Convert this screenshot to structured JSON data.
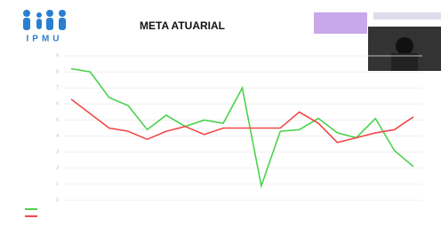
{
  "logo": {
    "text": "IPMU"
  },
  "chart_data": {
    "type": "line",
    "title": "META ATUARIAL",
    "categories": [
      null,
      null,
      null,
      null,
      null,
      null,
      null,
      null,
      null,
      null,
      null,
      null,
      null,
      null,
      null,
      null,
      null,
      null,
      null
    ],
    "series": [
      {
        "color": "#4cd24c",
        "values": [
          8.2,
          8.0,
          6.4,
          5.9,
          4.4,
          5.3,
          4.6,
          5.0,
          4.8,
          7.0,
          0.9,
          4.3,
          4.4,
          5.1,
          4.2,
          3.9,
          5.1,
          3.1,
          2.1
        ]
      },
      {
        "color": "#f04848",
        "values": [
          6.3,
          5.4,
          4.5,
          4.3,
          3.8,
          4.3,
          4.6,
          4.1,
          4.5,
          4.5,
          4.5,
          4.5,
          5.5,
          4.8,
          3.6,
          3.9,
          4.2,
          4.4,
          5.2
        ]
      }
    ],
    "ylim": [
      0,
      9
    ],
    "yticks": [
      0,
      1,
      2,
      3,
      4,
      5,
      6,
      7,
      8,
      9
    ],
    "grid": true
  }
}
